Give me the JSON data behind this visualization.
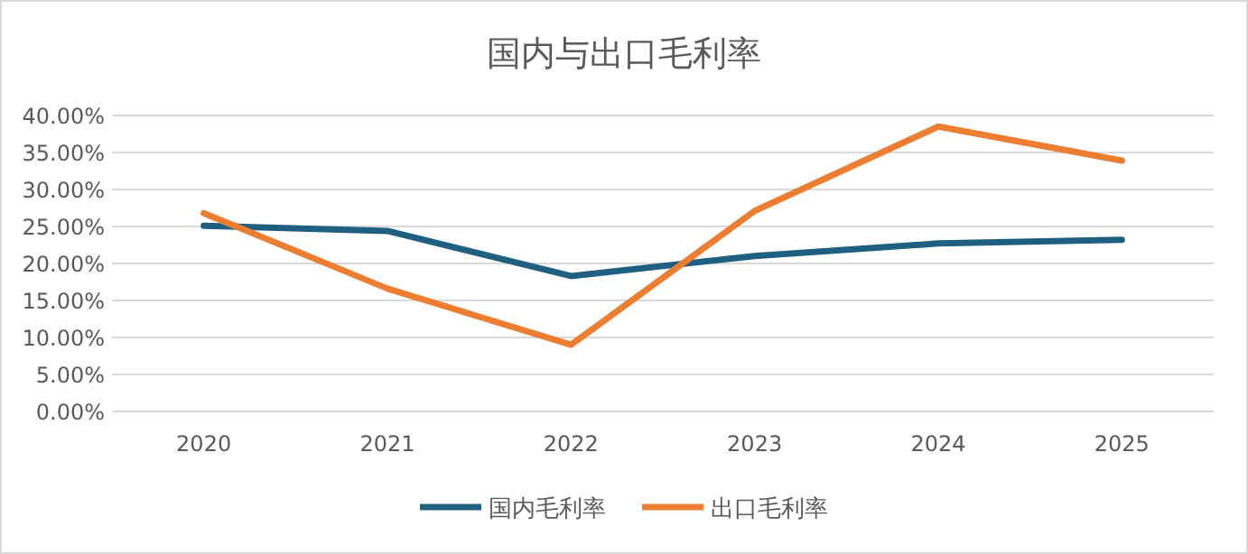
{
  "chart_data": {
    "type": "line",
    "title": "国内与出口毛利率",
    "categories": [
      "2020",
      "2021",
      "2022",
      "2023",
      "2024",
      "2025"
    ],
    "series": [
      {
        "name": "国内毛利率",
        "color": "#1f5f82",
        "values": [
          25.1,
          24.4,
          18.3,
          21.0,
          22.7,
          23.2
        ]
      },
      {
        "name": "出口毛利率",
        "color": "#ed7d31",
        "values": [
          26.8,
          16.6,
          9.0,
          27.1,
          38.5,
          33.9
        ]
      }
    ],
    "ylim": [
      0,
      40
    ],
    "yticks": [
      {
        "value": 0,
        "label": "0.00%"
      },
      {
        "value": 5,
        "label": "5.00%"
      },
      {
        "value": 10,
        "label": "10.00%"
      },
      {
        "value": 15,
        "label": "15.00%"
      },
      {
        "value": 20,
        "label": "20.00%"
      },
      {
        "value": 25,
        "label": "25.00%"
      },
      {
        "value": 30,
        "label": "30.00%"
      },
      {
        "value": 35,
        "label": "35.00%"
      },
      {
        "value": 40,
        "label": "40.00%"
      }
    ],
    "grid": "y",
    "legend": "bottom"
  }
}
